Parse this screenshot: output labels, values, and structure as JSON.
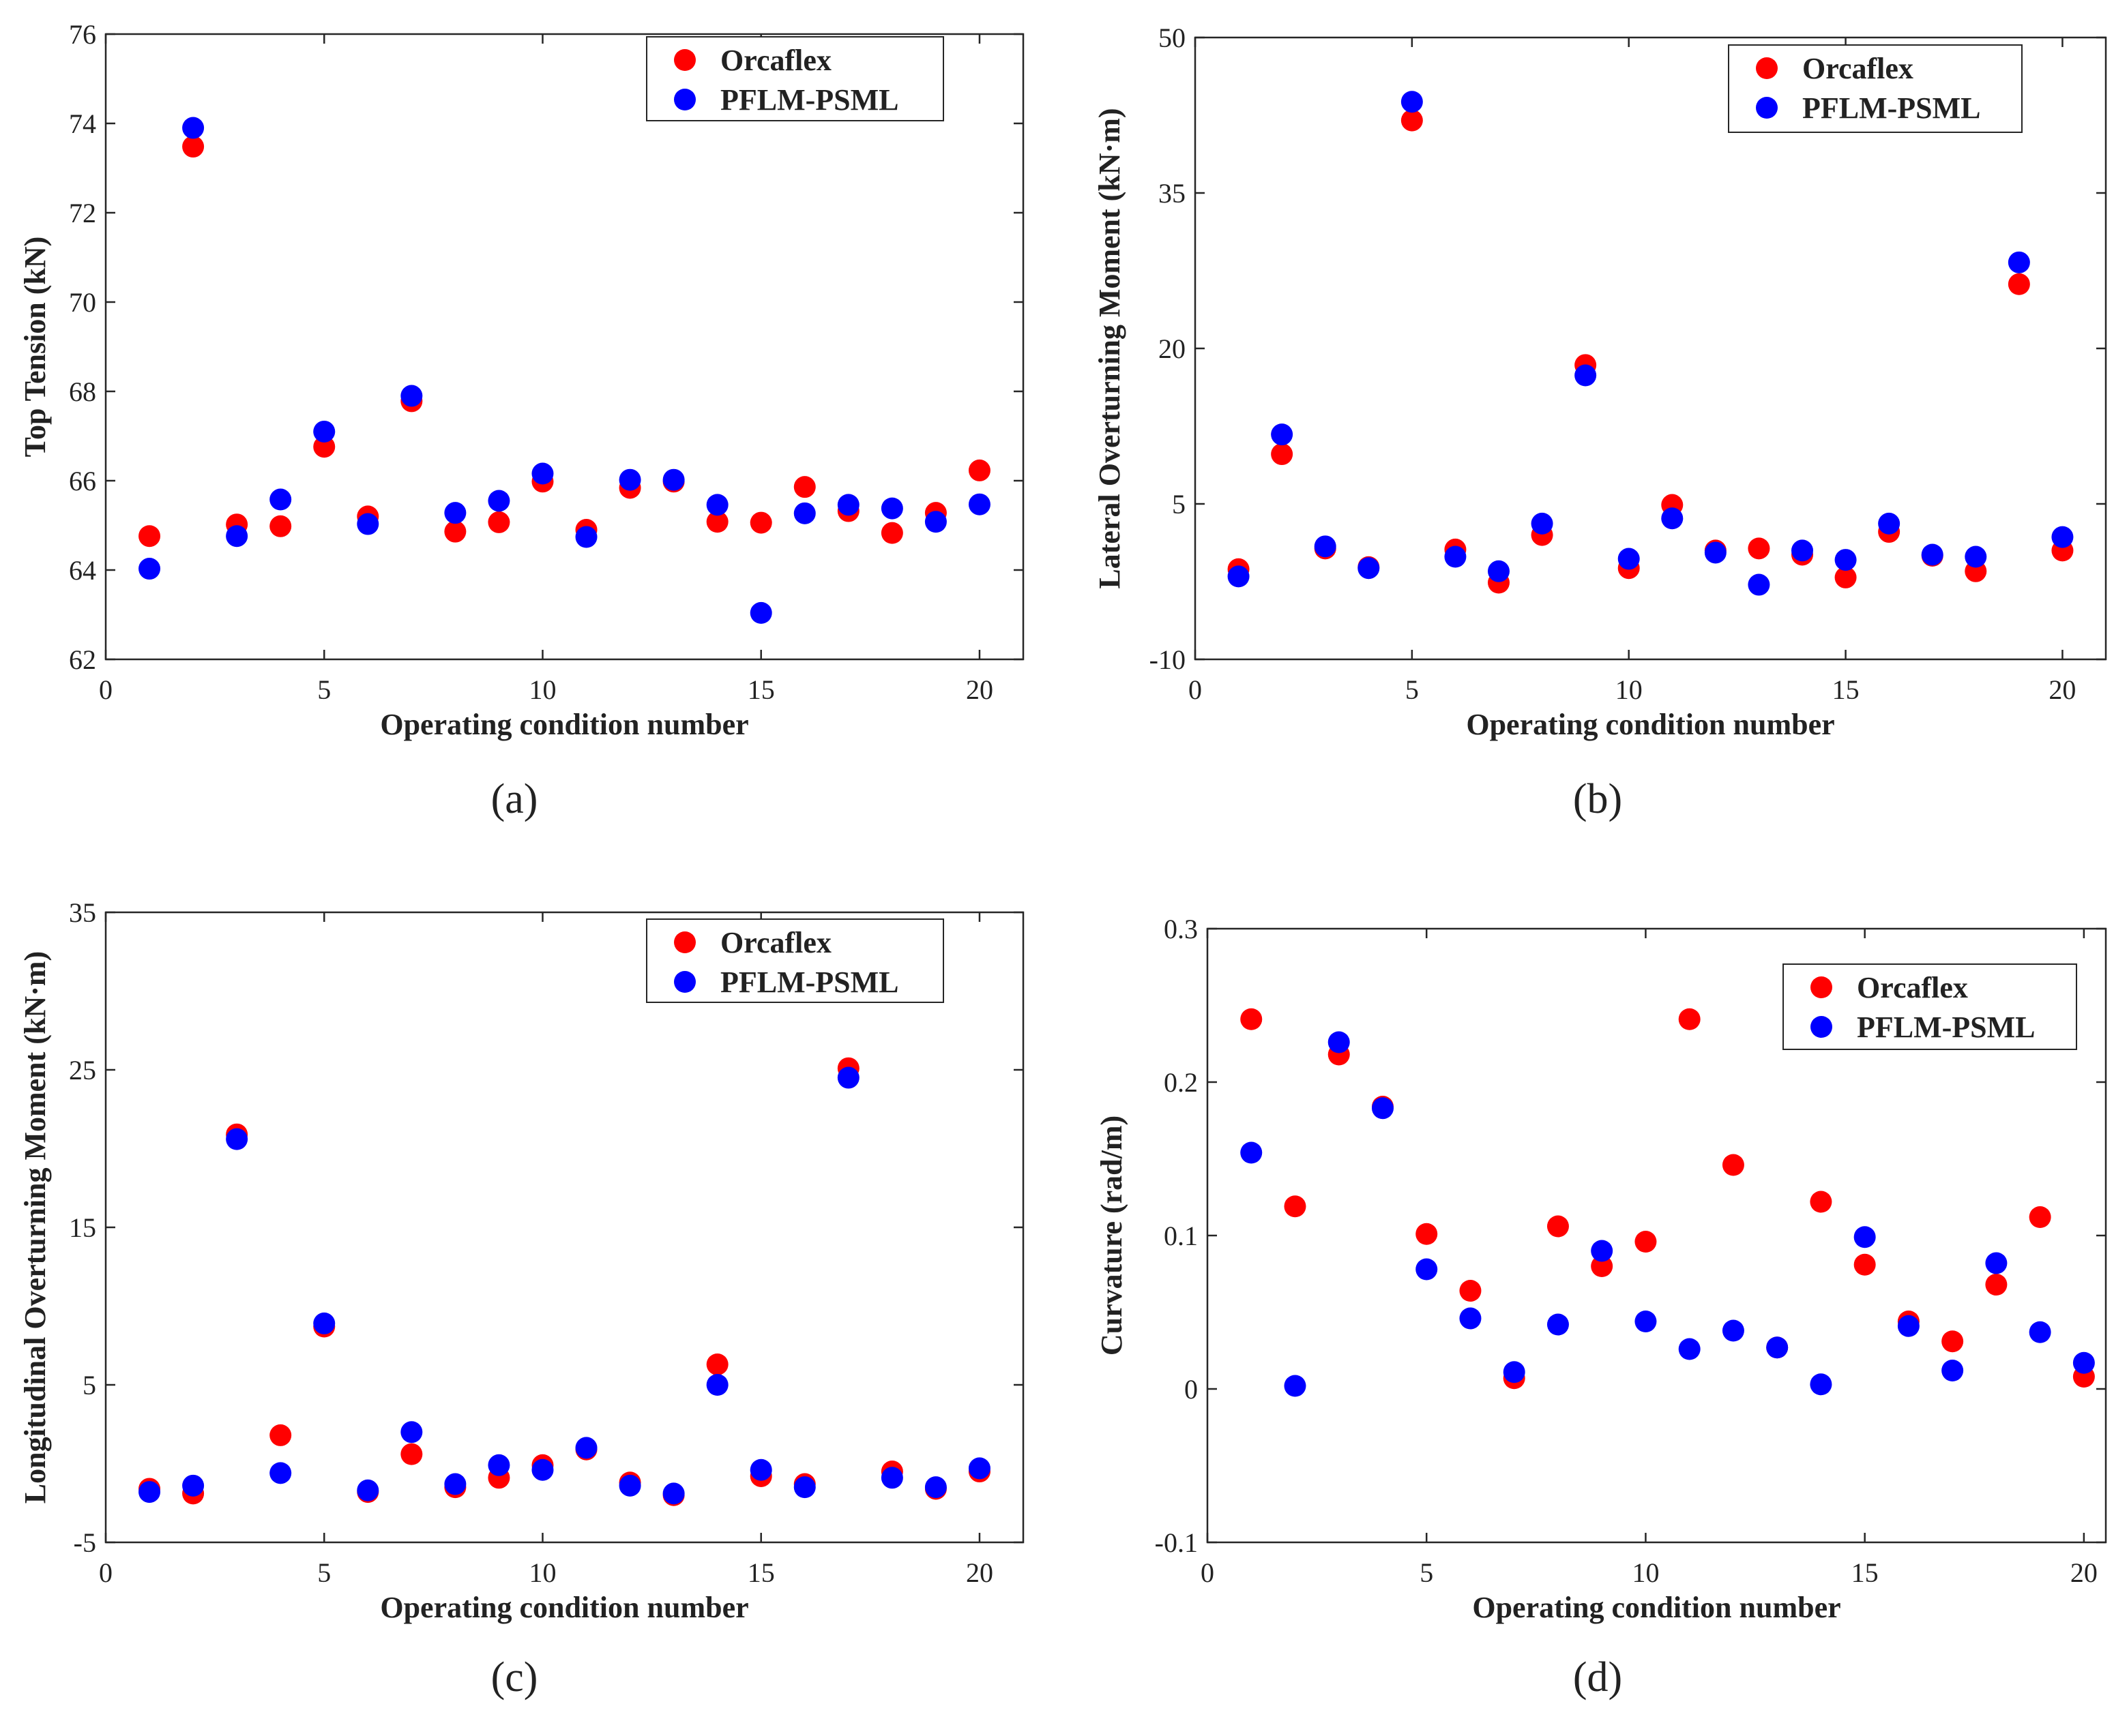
{
  "colors": {
    "orcaflex": "#ff0000",
    "pflm": "#0000ff",
    "axis": "#262626"
  },
  "chart_data": [
    {
      "type": "scatter",
      "panel": "(a)",
      "xlabel": "Operating condition number",
      "ylabel": "Top Tension (kN)",
      "xlim": [
        0,
        21
      ],
      "ylim": [
        62,
        76
      ],
      "xticks": [
        0,
        5,
        10,
        15,
        20
      ],
      "yticks": [
        62,
        64,
        66,
        68,
        70,
        72,
        74,
        76
      ],
      "ytick_labels": [
        "62",
        "64",
        "66",
        "68",
        "70",
        "72",
        "74",
        "76"
      ],
      "legend": "top-right",
      "x": [
        1,
        2,
        3,
        4,
        5,
        6,
        7,
        8,
        9,
        10,
        11,
        12,
        13,
        14,
        15,
        16,
        17,
        18,
        19,
        20
      ],
      "series": [
        {
          "name": "Orcaflex",
          "color": "#ff0000",
          "values": [
            64.76,
            73.48,
            65.02,
            64.98,
            66.76,
            65.2,
            67.78,
            64.86,
            65.07,
            65.98,
            64.9,
            65.84,
            65.98,
            65.08,
            65.06,
            65.86,
            65.32,
            64.83,
            65.28,
            66.23
          ]
        },
        {
          "name": "PFLM-PSML",
          "color": "#0000ff",
          "values": [
            64.03,
            73.9,
            64.76,
            65.58,
            67.1,
            65.03,
            67.9,
            65.28,
            65.55,
            66.16,
            64.74,
            66.02,
            66.02,
            65.46,
            63.04,
            65.27,
            65.46,
            65.38,
            65.08,
            65.47
          ]
        }
      ]
    },
    {
      "type": "scatter",
      "panel": "(b)",
      "xlabel": "Operating condition number",
      "ylabel": "Lateral Overturning Moment (kN·m)",
      "xlim": [
        0,
        21
      ],
      "ylim": [
        -10,
        50
      ],
      "xticks": [
        0,
        5,
        10,
        15,
        20
      ],
      "yticks": [
        -10,
        5,
        20,
        35,
        50
      ],
      "ytick_labels": [
        "-10",
        "5",
        "20",
        "35",
        "50"
      ],
      "legend": "top-right",
      "x": [
        1,
        2,
        3,
        4,
        5,
        6,
        7,
        8,
        9,
        10,
        11,
        12,
        13,
        14,
        15,
        16,
        17,
        18,
        19,
        20
      ],
      "series": [
        {
          "name": "Orcaflex",
          "color": "#ff0000",
          "values": [
            -1.3,
            9.8,
            0.7,
            -1.1,
            42,
            0.6,
            -2.6,
            2,
            18.4,
            -1.2,
            4.9,
            0.5,
            0.7,
            0.1,
            -2.1,
            2.3,
            0,
            -1.5,
            26.2,
            0.5
          ]
        },
        {
          "name": "PFLM-PSML",
          "color": "#0000ff",
          "values": [
            -2,
            11.7,
            0.9,
            -1.2,
            43.8,
            -0.1,
            -1.5,
            3.1,
            17.4,
            -0.3,
            3.6,
            0.3,
            -2.8,
            0.5,
            -0.4,
            3.1,
            0.1,
            -0.1,
            28.3,
            1.8
          ]
        }
      ]
    },
    {
      "type": "scatter",
      "panel": "(c)",
      "xlabel": "Operating condition number",
      "ylabel": "Longitudinal Overturning Moment (kN·m)",
      "xlim": [
        0,
        21
      ],
      "ylim": [
        -5,
        35
      ],
      "xticks": [
        0,
        5,
        10,
        15,
        20
      ],
      "yticks": [
        -5,
        5,
        15,
        25,
        35
      ],
      "ytick_labels": [
        "-5",
        "5",
        "15",
        "25",
        "35"
      ],
      "legend": "top-right",
      "x": [
        1,
        2,
        3,
        4,
        5,
        6,
        7,
        8,
        9,
        10,
        11,
        12,
        13,
        14,
        15,
        16,
        17,
        18,
        19,
        20
      ],
      "series": [
        {
          "name": "Orcaflex",
          "color": "#ff0000",
          "values": [
            -1.6,
            -1.9,
            20.9,
            1.8,
            8.7,
            -1.8,
            0.6,
            -1.5,
            -0.9,
            -0.1,
            0.9,
            -1.2,
            -2,
            6.3,
            -0.8,
            -1.3,
            25.1,
            -0.5,
            -1.6,
            -0.5
          ]
        },
        {
          "name": "PFLM-PSML",
          "color": "#0000ff",
          "values": [
            -1.8,
            -1.4,
            20.6,
            -0.6,
            8.9,
            -1.7,
            2,
            -1.3,
            -0.1,
            -0.4,
            1,
            -1.4,
            -1.9,
            5,
            -0.4,
            -1.5,
            24.5,
            -0.9,
            -1.5,
            -0.3
          ]
        }
      ]
    },
    {
      "type": "scatter",
      "panel": "(d)",
      "xlabel": "Operating condition number",
      "ylabel": "Curvature (rad/m)",
      "xlim": [
        0,
        20.5
      ],
      "ylim": [
        -0.1,
        0.3
      ],
      "xticks": [
        0,
        5,
        10,
        15,
        20
      ],
      "yticks": [
        -0.1,
        0,
        0.1,
        0.2,
        0.3
      ],
      "ytick_labels": [
        "-0.1",
        "0",
        "0.1",
        "0.2",
        "0.3"
      ],
      "legend": "top-right",
      "x": [
        1,
        2,
        3,
        4,
        5,
        6,
        7,
        8,
        9,
        10,
        11,
        12,
        13,
        14,
        15,
        16,
        17,
        18,
        19,
        20
      ],
      "series": [
        {
          "name": "Orcaflex",
          "color": "#ff0000",
          "values": [
            0.241,
            0.119,
            0.218,
            0.184,
            0.101,
            0.064,
            0.007,
            0.106,
            0.08,
            0.096,
            0.241,
            0.146,
            0.027,
            0.122,
            0.081,
            0.044,
            0.031,
            0.068,
            0.112,
            0.008
          ]
        },
        {
          "name": "PFLM-PSML",
          "color": "#0000ff",
          "values": [
            0.154,
            0.002,
            0.226,
            0.183,
            0.078,
            0.046,
            0.011,
            0.042,
            0.09,
            0.044,
            0.026,
            0.038,
            0.027,
            0.003,
            0.099,
            0.041,
            0.012,
            0.082,
            0.037,
            0.017
          ]
        }
      ]
    }
  ]
}
